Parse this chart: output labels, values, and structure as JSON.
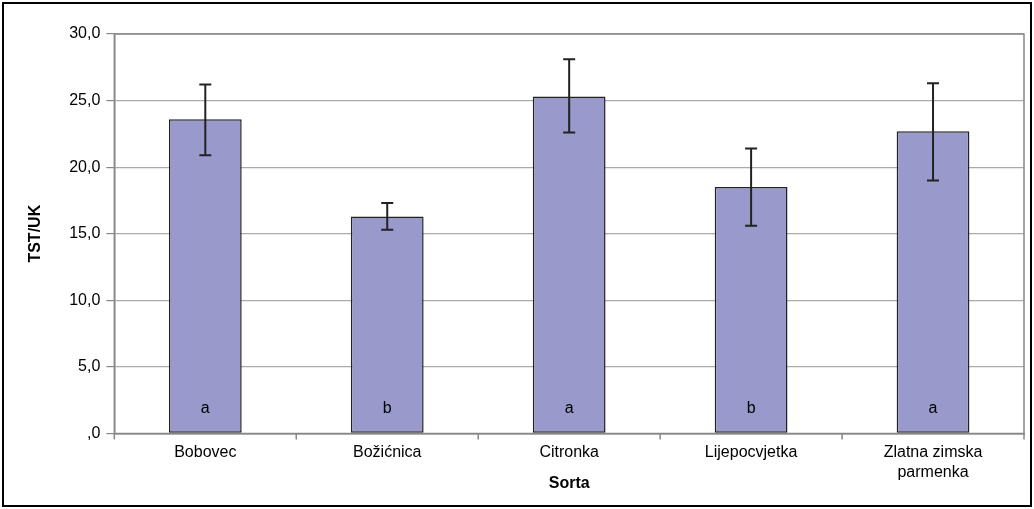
{
  "chart_data": {
    "type": "bar",
    "xlabel": "Sorta",
    "ylabel": "TST/UK",
    "categories": [
      "Bobovec",
      "Božićnica",
      "Citronka",
      "Lijepocvjetka",
      "Zlatna zimska parmenka"
    ],
    "values": [
      23.6,
      16.3,
      25.3,
      18.5,
      22.7
    ],
    "errors": [
      [
        20.9,
        26.2
      ],
      [
        15.3,
        17.3
      ],
      [
        22.6,
        28.1
      ],
      [
        15.6,
        21.4
      ],
      [
        19.0,
        26.3
      ]
    ],
    "color": "#9999cc",
    "ylim": [
      0,
      30
    ],
    "yticks": [
      {
        "value": 0,
        "label": ",0"
      },
      {
        "value": 5,
        "label": "5,0"
      },
      {
        "value": 10,
        "label": "10,0"
      },
      {
        "value": 15,
        "label": "15,0"
      },
      {
        "value": 20,
        "label": "20,0"
      },
      {
        "value": 25,
        "label": "25,0"
      },
      {
        "value": 30,
        "label": "30,0"
      }
    ],
    "grid": "y",
    "annotations": [
      "a",
      "b",
      "a",
      "b",
      "a"
    ]
  }
}
